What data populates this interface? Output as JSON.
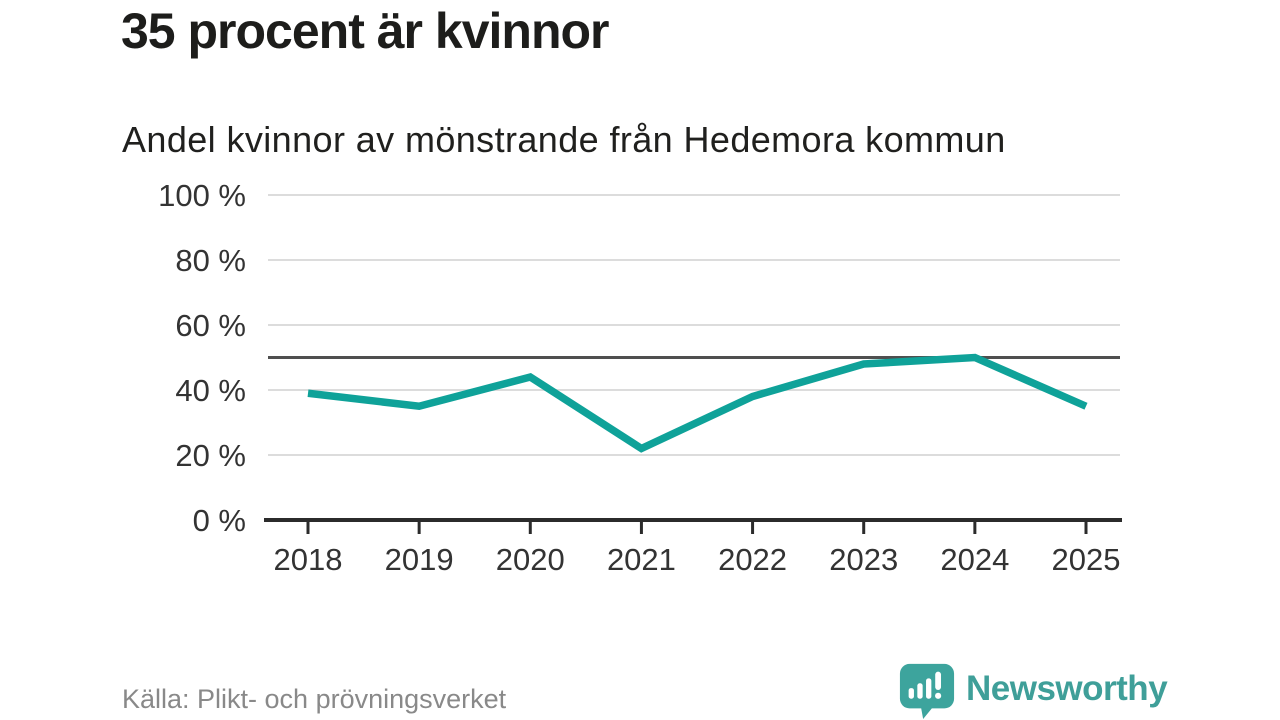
{
  "header": {
    "title": "35 procent är kvinnor",
    "subtitle": "Andel kvinnor av mönstrande från Hedemora kommun"
  },
  "footer": {
    "source": "Källa: Plikt- och prövningsverket",
    "brand_name": "Newsworthy"
  },
  "colors": {
    "line": "#0fa299",
    "reference_line": "#4f4f4f",
    "grid": "#dcdcdc",
    "axis": "#2b2b2b",
    "tick_label": "#333333",
    "brand_teal": "#3f9f99",
    "title_text": "#1d1d1b",
    "source_text": "#898989"
  },
  "chart_data": {
    "type": "line",
    "title": "35 procent är kvinnor",
    "subtitle": "Andel kvinnor av mönstrande från Hedemora kommun",
    "categories": [
      "2018",
      "2019",
      "2020",
      "2021",
      "2022",
      "2023",
      "2024",
      "2025"
    ],
    "series": [
      {
        "name": "Andel kvinnor av mönstrande",
        "values": [
          39,
          35,
          44,
          22,
          38,
          48,
          50,
          35
        ]
      }
    ],
    "ylim": [
      0,
      100
    ],
    "yticks": [
      0,
      20,
      40,
      60,
      80,
      100
    ],
    "ytick_labels": [
      "0 %",
      "20 %",
      "40 %",
      "60 %",
      "80 %",
      "100 %"
    ],
    "reference_line": 50,
    "grid": "horizontal",
    "legend": false,
    "xlabel": "",
    "ylabel": ""
  }
}
